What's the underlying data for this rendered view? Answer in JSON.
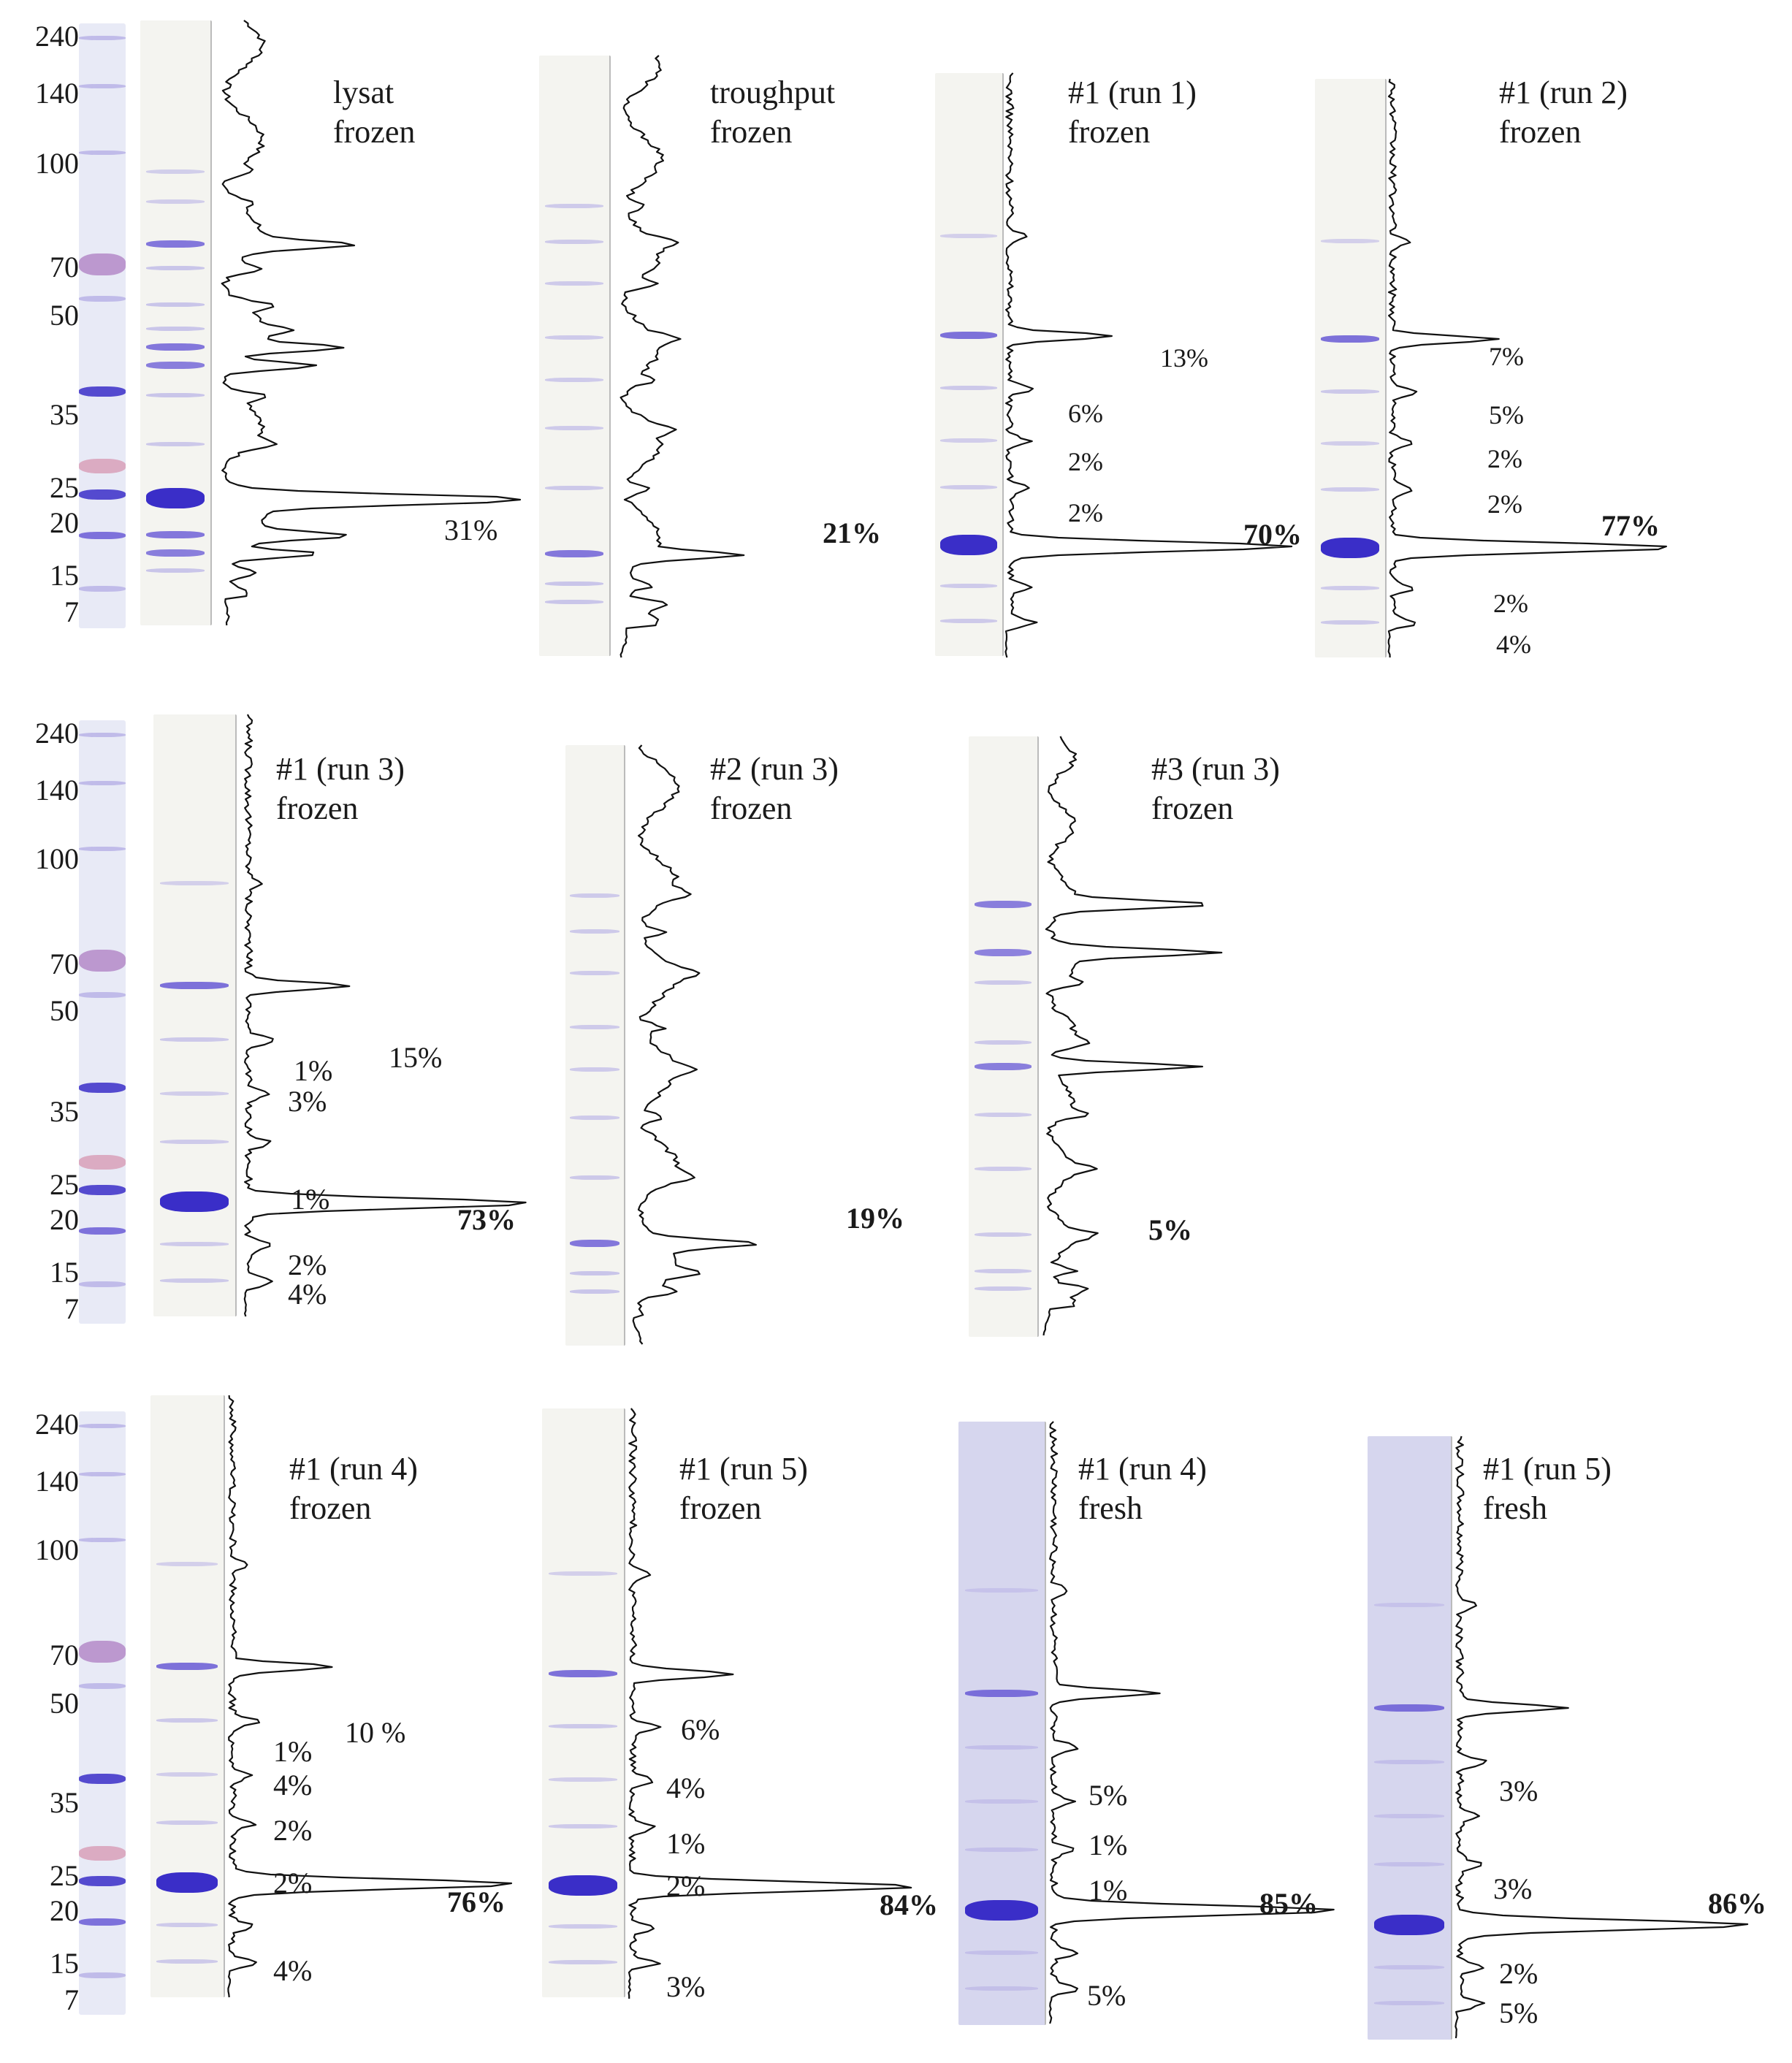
{
  "figure": {
    "mw_markers": [
      "240",
      "140",
      "100",
      "70",
      "50",
      "35",
      "25",
      "20",
      "15",
      "7"
    ],
    "colors": {
      "lane_bg": "#f4f4f0",
      "lane_bg_fresh": "#d6d6ee",
      "band_strong": "#3a2ec8",
      "band_medium": "#6a5cd6",
      "band_faint": "#b9b3e6",
      "ladder_bg": "#e8eaf6",
      "ladder_pink": "#d8a0b8",
      "trace": "#111111"
    },
    "rows": [
      {
        "panels": [
          {
            "title_line1": "lysat",
            "title_line2": "frozen",
            "percentages": [
              {
                "label": "31%",
                "major": false
              }
            ],
            "profile": "lysate"
          },
          {
            "title_line1": "troughput",
            "title_line2": "frozen",
            "percentages": [
              {
                "label": "21%",
                "major": true
              }
            ],
            "profile": "flowthrough"
          },
          {
            "title_line1": "#1 (run 1)",
            "title_line2": "frozen",
            "percentages": [
              {
                "label": "13%",
                "major": false
              },
              {
                "label": "6%",
                "major": false
              },
              {
                "label": "2%",
                "major": false
              },
              {
                "label": "2%",
                "major": false
              },
              {
                "label": "70%",
                "major": true
              }
            ],
            "profile": "pure"
          },
          {
            "title_line1": "#1 (run 2)",
            "title_line2": "frozen",
            "percentages": [
              {
                "label": "7%",
                "major": false
              },
              {
                "label": "5%",
                "major": false
              },
              {
                "label": "2%",
                "major": false
              },
              {
                "label": "2%",
                "major": false
              },
              {
                "label": "77%",
                "major": true
              },
              {
                "label": "2%",
                "major": false
              },
              {
                "label": "4%",
                "major": false
              }
            ],
            "profile": "pure"
          }
        ]
      },
      {
        "panels": [
          {
            "title_line1": "#1 (run 3)",
            "title_line2": "frozen",
            "percentages": [
              {
                "label": "15%",
                "major": false
              },
              {
                "label": "1%",
                "major": false
              },
              {
                "label": "3%",
                "major": false
              },
              {
                "label": "1%",
                "major": false
              },
              {
                "label": "73%",
                "major": true
              },
              {
                "label": "2%",
                "major": false
              },
              {
                "label": "4%",
                "major": false
              }
            ],
            "profile": "pure"
          },
          {
            "title_line1": "#2 (run 3)",
            "title_line2": "frozen",
            "percentages": [
              {
                "label": "19%",
                "major": true
              }
            ],
            "profile": "flowthrough"
          },
          {
            "title_line1": "#3 (run 3)",
            "title_line2": "frozen",
            "percentages": [
              {
                "label": "5%",
                "major": true
              }
            ],
            "profile": "contaminant"
          }
        ]
      },
      {
        "panels": [
          {
            "title_line1": "#1 (run 4)",
            "title_line2": "frozen",
            "percentages": [
              {
                "label": "10 %",
                "major": false
              },
              {
                "label": "1%",
                "major": false
              },
              {
                "label": "4%",
                "major": false
              },
              {
                "label": "2%",
                "major": false
              },
              {
                "label": "2%",
                "major": false
              },
              {
                "label": "76%",
                "major": true
              },
              {
                "label": "4%",
                "major": false
              }
            ],
            "profile": "pure"
          },
          {
            "title_line1": "#1 (run 5)",
            "title_line2": "frozen",
            "percentages": [
              {
                "label": "6%",
                "major": false
              },
              {
                "label": "4%",
                "major": false
              },
              {
                "label": "1%",
                "major": false
              },
              {
                "label": "2%",
                "major": false
              },
              {
                "label": "84%",
                "major": true
              },
              {
                "label": "3%",
                "major": false
              }
            ],
            "profile": "pure"
          },
          {
            "title_line1": "#1 (run 4)",
            "title_line2": "fresh",
            "percentages": [
              {
                "label": "5%",
                "major": false
              },
              {
                "label": "1%",
                "major": false
              },
              {
                "label": "1%",
                "major": false
              },
              {
                "label": "85%",
                "major": true
              },
              {
                "label": "5%",
                "major": false
              }
            ],
            "profile": "pure"
          },
          {
            "title_line1": "#1 (run 5)",
            "title_line2": "fresh",
            "percentages": [
              {
                "label": "3%",
                "major": false
              },
              {
                "label": "3%",
                "major": false
              },
              {
                "label": "86%",
                "major": true
              },
              {
                "label": "2%",
                "major": false
              },
              {
                "label": "5%",
                "major": false
              }
            ],
            "profile": "pure"
          }
        ]
      }
    ]
  }
}
